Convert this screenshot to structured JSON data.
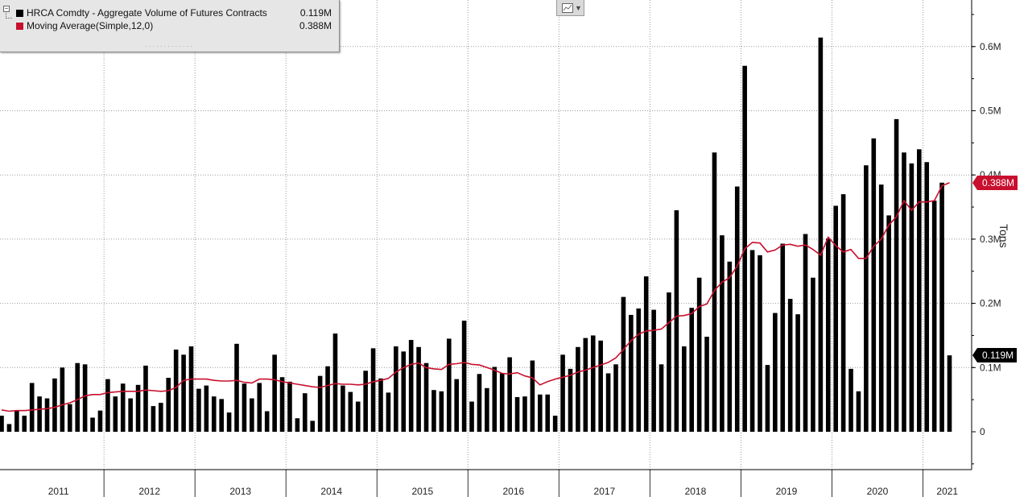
{
  "legend": {
    "series1_label": "HRCA Comdty - Aggregate Volume of Futures Contracts",
    "series1_value": "0.119M",
    "series2_label": "Moving Average(Simple,12,0)",
    "series2_value": "0.388M"
  },
  "colors": {
    "bars": "#000000",
    "moving_average": "#c8102e",
    "grid": "#9a9a9a"
  },
  "icons": {
    "chart_type": "line-chart-icon",
    "dropdown": "chevron-down-icon"
  },
  "chart_data": {
    "type": "bar",
    "frequency": "monthly",
    "ylabel": "Tons",
    "ylim": [
      -0.055,
      0.67
    ],
    "y_ticks": [
      0,
      0.1,
      0.2,
      0.3,
      0.4,
      0.5,
      0.6
    ],
    "y_tick_labels": [
      "0",
      "0.1M",
      "0.2M",
      "0.3M",
      "0.4M",
      "0.5M",
      "0.6M"
    ],
    "x_labels": [
      "2011",
      "2012",
      "2013",
      "2014",
      "2015",
      "2016",
      "2017",
      "2018",
      "2019",
      "2020",
      "2021"
    ],
    "grid": true,
    "legend_position": "top-left",
    "start": "2010-11",
    "end": "2021-06",
    "series": [
      {
        "name": "HRCA Comdty - Aggregate Volume of Futures Contracts",
        "kind": "bar",
        "values": [
          0.025,
          0.012,
          0.032,
          0.025,
          0.076,
          0.055,
          0.052,
          0.083,
          0.1,
          0.043,
          0.107,
          0.105,
          0.022,
          0.033,
          0.082,
          0.055,
          0.075,
          0.052,
          0.073,
          0.103,
          0.04,
          0.045,
          0.084,
          0.128,
          0.12,
          0.133,
          0.067,
          0.072,
          0.055,
          0.051,
          0.03,
          0.137,
          0.075,
          0.052,
          0.076,
          0.032,
          0.12,
          0.085,
          0.078,
          0.021,
          0.06,
          0.017,
          0.087,
          0.102,
          0.153,
          0.072,
          0.062,
          0.047,
          0.095,
          0.13,
          0.083,
          0.061,
          0.133,
          0.125,
          0.143,
          0.132,
          0.107,
          0.065,
          0.063,
          0.145,
          0.082,
          0.173,
          0.047,
          0.09,
          0.068,
          0.101,
          0.091,
          0.116,
          0.054,
          0.055,
          0.111,
          0.058,
          0.058,
          0.025,
          0.12,
          0.098,
          0.132,
          0.146,
          0.15,
          0.142,
          0.091,
          0.105,
          0.21,
          0.182,
          0.192,
          0.242,
          0.19,
          0.105,
          0.217,
          0.345,
          0.133,
          0.193,
          0.24,
          0.148,
          0.435,
          0.306,
          0.265,
          0.382,
          0.57,
          0.283,
          0.275,
          0.104,
          0.185,
          0.293,
          0.207,
          0.183,
          0.308,
          0.24,
          0.614,
          0.301,
          0.352,
          0.37,
          0.098,
          0.063,
          0.415,
          0.457,
          0.385,
          0.337,
          0.487,
          0.435,
          0.418,
          0.44,
          0.42,
          0.36,
          0.388,
          0.119
        ],
        "last_value": 0.119,
        "last_value_label": "0.119M"
      },
      {
        "name": "Moving Average(Simple,12,0)",
        "kind": "line",
        "values": [
          0.034,
          0.032,
          0.033,
          0.033,
          0.034,
          0.035,
          0.036,
          0.038,
          0.042,
          0.045,
          0.05,
          0.056,
          0.058,
          0.058,
          0.061,
          0.062,
          0.063,
          0.063,
          0.063,
          0.065,
          0.064,
          0.063,
          0.064,
          0.069,
          0.08,
          0.082,
          0.082,
          0.082,
          0.08,
          0.079,
          0.079,
          0.08,
          0.077,
          0.076,
          0.082,
          0.082,
          0.081,
          0.078,
          0.076,
          0.074,
          0.072,
          0.07,
          0.069,
          0.072,
          0.075,
          0.074,
          0.074,
          0.073,
          0.074,
          0.078,
          0.08,
          0.083,
          0.093,
          0.1,
          0.105,
          0.107,
          0.1,
          0.098,
          0.097,
          0.105,
          0.106,
          0.108,
          0.105,
          0.104,
          0.1,
          0.096,
          0.091,
          0.09,
          0.092,
          0.087,
          0.084,
          0.073,
          0.078,
          0.082,
          0.085,
          0.088,
          0.093,
          0.096,
          0.1,
          0.104,
          0.108,
          0.115,
          0.128,
          0.142,
          0.152,
          0.157,
          0.158,
          0.16,
          0.17,
          0.18,
          0.181,
          0.184,
          0.195,
          0.199,
          0.22,
          0.233,
          0.24,
          0.258,
          0.285,
          0.295,
          0.294,
          0.28,
          0.283,
          0.291,
          0.292,
          0.289,
          0.291,
          0.284,
          0.275,
          0.303,
          0.29,
          0.28,
          0.284,
          0.27,
          0.27,
          0.289,
          0.3,
          0.322,
          0.335,
          0.36,
          0.345,
          0.358,
          0.358,
          0.36,
          0.383,
          0.388
        ],
        "last_value": 0.388,
        "last_value_label": "0.388M"
      }
    ]
  }
}
